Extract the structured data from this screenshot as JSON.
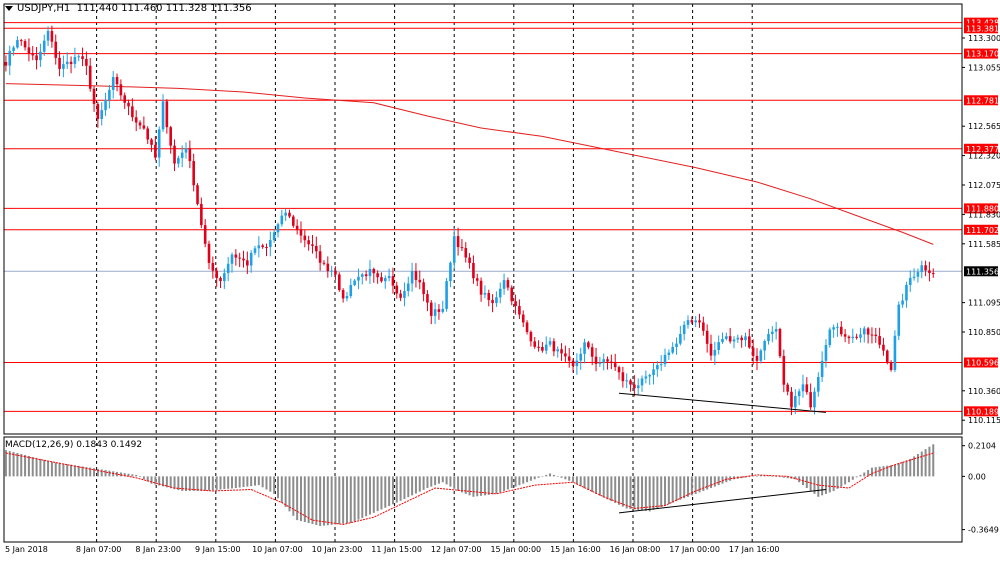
{
  "title": {
    "symbol": "USDJPY,H1",
    "ohlc": "111.440 111.460 111.328 111.356"
  },
  "macd_title": "MACD(12,26,9) 0.1843 0.1492",
  "colors": {
    "bull": "#1fa0e6",
    "bear": "#e0001a",
    "level": "#ff0000",
    "ma": "#e42020",
    "grid": "#000000",
    "current_price": "#9aaccc",
    "histogram": "#8c8c8c",
    "signal": "#ff0000",
    "trendline": "#000000",
    "axis_text": "#000000",
    "tag_text": "#ffffff"
  },
  "chart_data": [
    {
      "type": "candlestick",
      "ylim": [
        110.0,
        113.5
      ],
      "yticks": [
        "113.300",
        "113.055",
        "112.565",
        "112.320",
        "112.075",
        "111.830",
        "111.585",
        "111.095",
        "110.850",
        "110.360",
        "110.115"
      ],
      "xticks": [
        "5 Jan 2018",
        "8 Jan 07:00",
        "8 Jan 23:00",
        "9 Jan 15:00",
        "10 Jan 07:00",
        "10 Jan 23:00",
        "11 Jan 15:00",
        "12 Jan 07:00",
        "15 Jan 00:00",
        "15 Jan 16:00",
        "16 Jan 08:00",
        "17 Jan 00:00",
        "17 Jan 16:00"
      ],
      "grid": "vertical dashed",
      "levels": [
        "113.428",
        "113.381",
        "113.170",
        "112.781",
        "112.377",
        "111.880",
        "111.702",
        "110.596",
        "110.189"
      ],
      "current_price": "111.356",
      "moving_average": [
        [
          0,
          112.92
        ],
        [
          25,
          112.9
        ],
        [
          45,
          112.88
        ],
        [
          62,
          112.85
        ],
        [
          78,
          112.8
        ],
        [
          96,
          112.76
        ],
        [
          110,
          112.65
        ],
        [
          124,
          112.55
        ],
        [
          140,
          112.48
        ],
        [
          160,
          112.35
        ],
        [
          180,
          112.22
        ],
        [
          196,
          112.1
        ],
        [
          210,
          111.96
        ],
        [
          222,
          111.82
        ],
        [
          234,
          111.68
        ],
        [
          242,
          111.58
        ]
      ],
      "swing_points": [
        [
          0,
          113.1
        ],
        [
          3,
          113.3
        ],
        [
          8,
          113.1
        ],
        [
          11,
          113.35
        ],
        [
          14,
          113.05
        ],
        [
          19,
          113.15
        ],
        [
          21,
          113.05
        ],
        [
          24,
          112.6
        ],
        [
          28,
          112.95
        ],
        [
          33,
          112.65
        ],
        [
          36,
          112.55
        ],
        [
          39,
          112.3
        ],
        [
          41,
          112.75
        ],
        [
          44,
          112.25
        ],
        [
          47,
          112.4
        ],
        [
          49,
          112.1
        ],
        [
          51,
          111.75
        ],
        [
          53,
          111.4
        ],
        [
          56,
          111.28
        ],
        [
          59,
          111.5
        ],
        [
          63,
          111.42
        ],
        [
          65,
          111.55
        ],
        [
          68,
          111.55
        ],
        [
          70,
          111.68
        ],
        [
          73,
          111.85
        ],
        [
          76,
          111.7
        ],
        [
          80,
          111.55
        ],
        [
          83,
          111.4
        ],
        [
          86,
          111.35
        ],
        [
          88,
          111.1
        ],
        [
          91,
          111.3
        ],
        [
          95,
          111.35
        ],
        [
          98,
          111.25
        ],
        [
          100,
          111.3
        ],
        [
          103,
          111.15
        ],
        [
          106,
          111.35
        ],
        [
          108,
          111.25
        ],
        [
          111,
          111.0
        ],
        [
          114,
          111.05
        ],
        [
          117,
          111.65
        ],
        [
          121,
          111.4
        ],
        [
          124,
          111.18
        ],
        [
          127,
          111.08
        ],
        [
          130,
          111.3
        ],
        [
          133,
          111.05
        ],
        [
          136,
          110.85
        ],
        [
          139,
          110.7
        ],
        [
          142,
          110.75
        ],
        [
          145,
          110.65
        ],
        [
          148,
          110.55
        ],
        [
          151,
          110.75
        ],
        [
          154,
          110.6
        ],
        [
          158,
          110.6
        ],
        [
          161,
          110.45
        ],
        [
          164,
          110.4
        ],
        [
          167,
          110.45
        ],
        [
          170,
          110.55
        ],
        [
          173,
          110.7
        ],
        [
          175,
          110.75
        ],
        [
          178,
          110.95
        ],
        [
          181,
          110.95
        ],
        [
          184,
          110.65
        ],
        [
          187,
          110.8
        ],
        [
          190,
          110.8
        ],
        [
          193,
          110.8
        ],
        [
          196,
          110.6
        ],
        [
          198,
          110.8
        ],
        [
          201,
          110.85
        ],
        [
          203,
          110.4
        ],
        [
          205,
          110.25
        ],
        [
          208,
          110.4
        ],
        [
          210,
          110.25
        ],
        [
          212,
          110.5
        ],
        [
          215,
          110.9
        ],
        [
          218,
          110.85
        ],
        [
          221,
          110.8
        ],
        [
          224,
          110.85
        ],
        [
          227,
          110.8
        ],
        [
          229,
          110.7
        ],
        [
          231,
          110.55
        ],
        [
          233,
          111.05
        ],
        [
          236,
          111.3
        ],
        [
          239,
          111.4
        ],
        [
          242,
          111.35
        ]
      ],
      "trendlines": [
        [
          [
            160,
            110.34
          ],
          [
            214,
            110.18
          ]
        ]
      ]
    },
    {
      "type": "macd",
      "ylim": [
        -0.45,
        0.27
      ],
      "yticks": [
        "0.2104",
        "0.00",
        "-0.3649"
      ],
      "params": "12,26,9",
      "histogram": [
        [
          0,
          0.18
        ],
        [
          12,
          0.1
        ],
        [
          22,
          0.06
        ],
        [
          34,
          0.01
        ],
        [
          38,
          -0.05
        ],
        [
          46,
          -0.1
        ],
        [
          52,
          -0.1
        ],
        [
          60,
          -0.08
        ],
        [
          66,
          -0.06
        ],
        [
          70,
          -0.12
        ],
        [
          76,
          -0.3
        ],
        [
          82,
          -0.34
        ],
        [
          90,
          -0.32
        ],
        [
          96,
          -0.25
        ],
        [
          102,
          -0.18
        ],
        [
          110,
          -0.08
        ],
        [
          114,
          -0.04
        ],
        [
          118,
          -0.1
        ],
        [
          122,
          -0.14
        ],
        [
          128,
          -0.12
        ],
        [
          136,
          -0.04
        ],
        [
          142,
          0.02
        ],
        [
          148,
          -0.04
        ],
        [
          154,
          -0.12
        ],
        [
          162,
          -0.22
        ],
        [
          168,
          -0.24
        ],
        [
          176,
          -0.16
        ],
        [
          184,
          -0.08
        ],
        [
          190,
          -0.02
        ],
        [
          198,
          0.01
        ],
        [
          206,
          -0.02
        ],
        [
          212,
          -0.14
        ],
        [
          216,
          -0.1
        ],
        [
          220,
          -0.04
        ],
        [
          226,
          0.06
        ],
        [
          232,
          0.08
        ],
        [
          236,
          0.12
        ],
        [
          242,
          0.22
        ]
      ],
      "signal": [
        [
          0,
          0.16
        ],
        [
          12,
          0.1
        ],
        [
          22,
          0.05
        ],
        [
          34,
          -0.01
        ],
        [
          44,
          -0.08
        ],
        [
          54,
          -0.1
        ],
        [
          64,
          -0.09
        ],
        [
          72,
          -0.18
        ],
        [
          80,
          -0.3
        ],
        [
          88,
          -0.33
        ],
        [
          96,
          -0.28
        ],
        [
          104,
          -0.18
        ],
        [
          112,
          -0.08
        ],
        [
          120,
          -0.1
        ],
        [
          128,
          -0.12
        ],
        [
          138,
          -0.06
        ],
        [
          148,
          -0.04
        ],
        [
          156,
          -0.14
        ],
        [
          164,
          -0.22
        ],
        [
          172,
          -0.2
        ],
        [
          180,
          -0.1
        ],
        [
          188,
          -0.02
        ],
        [
          196,
          0.01
        ],
        [
          204,
          0.0
        ],
        [
          212,
          -0.06
        ],
        [
          220,
          -0.08
        ],
        [
          226,
          0.02
        ],
        [
          232,
          0.08
        ],
        [
          242,
          0.16
        ]
      ],
      "trendlines": [
        [
          [
            160,
            -0.25
          ],
          [
            214,
            -0.09
          ]
        ]
      ]
    }
  ]
}
